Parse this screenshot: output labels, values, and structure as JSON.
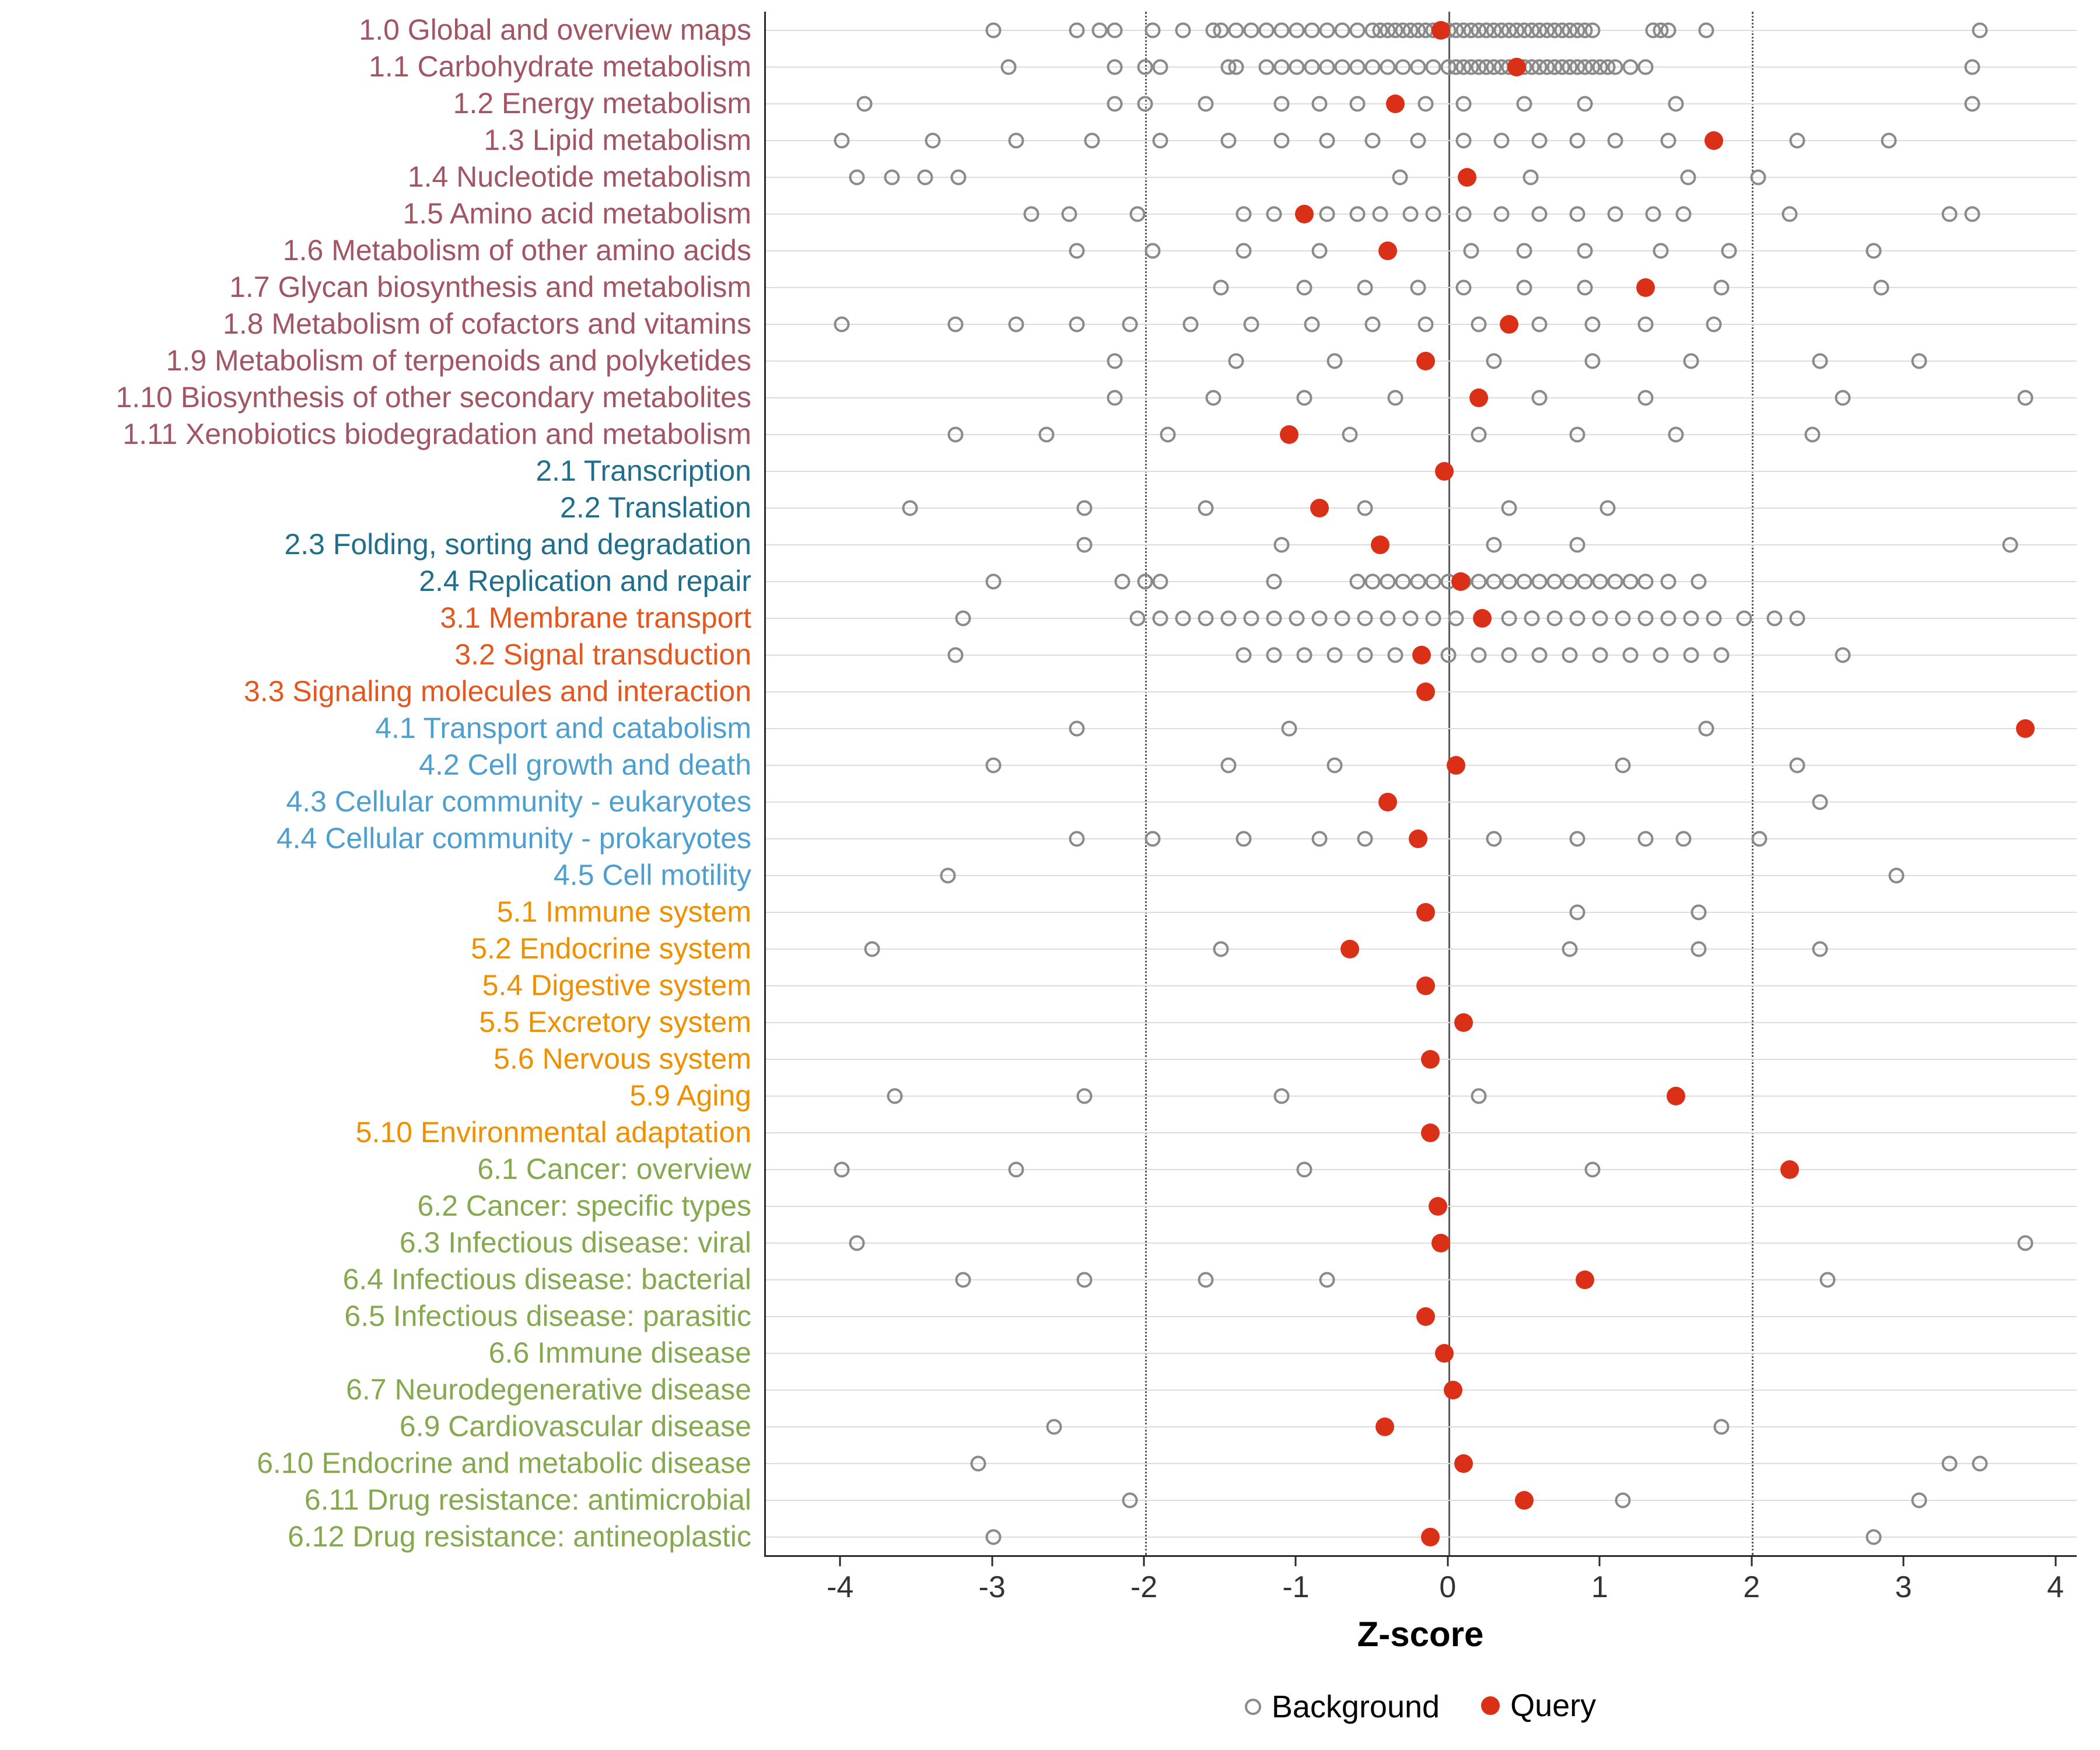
{
  "chart_data": {
    "type": "scatter",
    "title": "",
    "xlabel": "Z-score",
    "xlim": [
      -4.5,
      4.14
    ],
    "x_ticks": [
      -4,
      -3,
      -2,
      -1,
      0,
      1,
      2,
      3,
      4
    ],
    "reference_lines": {
      "solid": [
        0
      ],
      "dotted": [
        -2,
        2
      ]
    },
    "legend_labels": {
      "background": "Background",
      "query": "Query"
    },
    "legend_position": "bottom",
    "grid": "horizontal-only",
    "colors": {
      "query": "#DB3018",
      "background_stroke": "#8A8A8A",
      "gridline": "#DCDCDC",
      "reference_line": "#5A5A5A",
      "axis_line": "#2B2B2B",
      "groups": {
        "1": "#A25563",
        "2": "#1F6E8C",
        "3": "#E4571E",
        "4": "#4D9FD0",
        "5": "#EE9000",
        "6": "#85A94E"
      }
    },
    "rows": [
      {
        "label": "1.0 Global and overview maps",
        "group": "1",
        "query": -0.05,
        "background": [
          -3.0,
          -2.45,
          -2.3,
          -2.2,
          -1.95,
          -1.75,
          -1.55,
          -1.5,
          -1.4,
          -1.3,
          -1.2,
          -1.1,
          -1.0,
          -0.9,
          -0.8,
          -0.7,
          -0.6,
          -0.5,
          -0.45,
          -0.4,
          -0.35,
          -0.3,
          -0.25,
          -0.2,
          -0.15,
          -0.1,
          -0.05,
          0.0,
          0.05,
          0.1,
          0.15,
          0.2,
          0.25,
          0.3,
          0.35,
          0.4,
          0.45,
          0.5,
          0.55,
          0.6,
          0.65,
          0.7,
          0.75,
          0.8,
          0.85,
          0.9,
          0.95,
          1.35,
          1.4,
          1.45,
          1.7,
          3.5
        ]
      },
      {
        "label": "1.1 Carbohydrate metabolism",
        "group": "1",
        "query": 0.45,
        "background": [
          -2.9,
          -2.2,
          -2.0,
          -1.9,
          -1.45,
          -1.4,
          -1.2,
          -1.1,
          -1.0,
          -0.9,
          -0.8,
          -0.7,
          -0.6,
          -0.5,
          -0.4,
          -0.3,
          -0.2,
          -0.1,
          0.0,
          0.05,
          0.1,
          0.15,
          0.2,
          0.25,
          0.3,
          0.35,
          0.4,
          0.5,
          0.55,
          0.6,
          0.65,
          0.7,
          0.75,
          0.8,
          0.85,
          0.9,
          0.95,
          1.0,
          1.05,
          1.1,
          1.2,
          1.3,
          3.45
        ]
      },
      {
        "label": "1.2 Energy metabolism",
        "group": "1",
        "query": -0.35,
        "background": [
          -3.85,
          -2.2,
          -2.0,
          -1.6,
          -1.1,
          -0.85,
          -0.6,
          -0.15,
          0.1,
          0.5,
          0.9,
          1.5,
          3.45
        ]
      },
      {
        "label": "1.3 Lipid metabolism",
        "group": "1",
        "query": 1.75,
        "background": [
          -4.0,
          -3.4,
          -2.85,
          -2.35,
          -1.9,
          -1.45,
          -1.1,
          -0.8,
          -0.5,
          -0.2,
          0.1,
          0.35,
          0.6,
          0.85,
          1.1,
          1.45,
          2.3,
          2.9
        ]
      },
      {
        "label": "1.4 Nucleotide metabolism",
        "group": "1",
        "query": 0.12,
        "background": [
          -3.9,
          -3.67,
          -3.45,
          -3.23,
          -0.32,
          0.54,
          1.58,
          2.04
        ]
      },
      {
        "label": "1.5 Amino acid metabolism",
        "group": "1",
        "query": -0.95,
        "background": [
          -2.75,
          -2.5,
          -2.05,
          -1.35,
          -1.15,
          -0.8,
          -0.6,
          -0.45,
          -0.25,
          -0.1,
          0.1,
          0.35,
          0.6,
          0.85,
          1.1,
          1.35,
          1.55,
          2.25,
          3.3,
          3.45
        ]
      },
      {
        "label": "1.6 Metabolism of other amino acids",
        "group": "1",
        "query": -0.4,
        "background": [
          -2.45,
          -1.95,
          -1.35,
          -0.85,
          0.15,
          0.5,
          0.9,
          1.4,
          1.85,
          2.8
        ]
      },
      {
        "label": "1.7 Glycan biosynthesis and metabolism",
        "group": "1",
        "query": 1.3,
        "background": [
          -1.5,
          -0.95,
          -0.55,
          -0.2,
          0.1,
          0.5,
          0.9,
          1.8,
          2.85
        ]
      },
      {
        "label": "1.8 Metabolism of cofactors and vitamins",
        "group": "1",
        "query": 0.4,
        "background": [
          -4.0,
          -3.25,
          -2.85,
          -2.45,
          -2.1,
          -1.7,
          -1.3,
          -0.9,
          -0.5,
          -0.15,
          0.2,
          0.6,
          0.95,
          1.3,
          1.75
        ]
      },
      {
        "label": "1.9 Metabolism of terpenoids and polyketides",
        "group": "1",
        "query": -0.15,
        "background": [
          -2.2,
          -1.4,
          -0.75,
          0.3,
          0.95,
          1.6,
          2.45,
          3.1
        ]
      },
      {
        "label": "1.10 Biosynthesis of other secondary metabolites",
        "group": "1",
        "query": 0.2,
        "background": [
          -2.2,
          -1.55,
          -0.95,
          -0.35,
          0.6,
          1.3,
          2.6,
          3.8
        ]
      },
      {
        "label": "1.11 Xenobiotics biodegradation and metabolism",
        "group": "1",
        "query": -1.05,
        "background": [
          -3.25,
          -2.65,
          -1.85,
          -0.65,
          0.2,
          0.85,
          1.5,
          2.4
        ]
      },
      {
        "label": "2.1 Transcription",
        "group": "2",
        "query": -0.03,
        "background": []
      },
      {
        "label": "2.2 Translation",
        "group": "2",
        "query": -0.85,
        "background": [
          -3.55,
          -2.4,
          -1.6,
          -0.55,
          0.4,
          1.05
        ]
      },
      {
        "label": "2.3 Folding, sorting and degradation",
        "group": "2",
        "query": -0.45,
        "background": [
          -2.4,
          -1.1,
          0.3,
          0.85,
          3.7
        ]
      },
      {
        "label": "2.4 Replication and repair",
        "group": "2",
        "query": 0.08,
        "background": [
          -3.0,
          -2.15,
          -2.0,
          -1.9,
          -1.15,
          -0.6,
          -0.5,
          -0.4,
          -0.3,
          -0.2,
          -0.1,
          0.0,
          0.1,
          0.2,
          0.3,
          0.4,
          0.5,
          0.6,
          0.7,
          0.8,
          0.9,
          1.0,
          1.1,
          1.2,
          1.3,
          1.45,
          1.65
        ]
      },
      {
        "label": "3.1 Membrane transport",
        "group": "3",
        "query": 0.22,
        "background": [
          -3.2,
          -2.05,
          -1.9,
          -1.75,
          -1.6,
          -1.45,
          -1.3,
          -1.15,
          -1.0,
          -0.85,
          -0.7,
          -0.55,
          -0.4,
          -0.25,
          -0.1,
          0.05,
          0.4,
          0.55,
          0.7,
          0.85,
          1.0,
          1.15,
          1.3,
          1.45,
          1.6,
          1.75,
          1.95,
          2.15,
          2.3
        ]
      },
      {
        "label": "3.2 Signal transduction",
        "group": "3",
        "query": -0.18,
        "background": [
          -3.25,
          -1.35,
          -1.15,
          -0.95,
          -0.75,
          -0.55,
          -0.35,
          0.0,
          0.2,
          0.4,
          0.6,
          0.8,
          1.0,
          1.2,
          1.4,
          1.6,
          1.8,
          2.6
        ]
      },
      {
        "label": "3.3 Signaling molecules and interaction",
        "group": "3",
        "query": -0.15,
        "background": []
      },
      {
        "label": "4.1 Transport and catabolism",
        "group": "4",
        "query": 3.8,
        "background": [
          -2.45,
          -1.05,
          1.7
        ]
      },
      {
        "label": "4.2 Cell growth and death",
        "group": "4",
        "query": 0.05,
        "background": [
          -3.0,
          -1.45,
          -0.75,
          1.15,
          2.3
        ]
      },
      {
        "label": "4.3 Cellular community - eukaryotes",
        "group": "4",
        "query": -0.4,
        "background": [
          2.45
        ]
      },
      {
        "label": "4.4 Cellular community - prokaryotes",
        "group": "4",
        "query": -0.2,
        "background": [
          -2.45,
          -1.95,
          -1.35,
          -0.85,
          -0.55,
          0.3,
          0.85,
          1.3,
          1.55,
          2.05
        ]
      },
      {
        "label": "4.5 Cell motility",
        "group": "4",
        "query": null,
        "background": [
          -3.3,
          2.95
        ]
      },
      {
        "label": "5.1 Immune system",
        "group": "5",
        "query": -0.15,
        "background": [
          0.85,
          1.65
        ]
      },
      {
        "label": "5.2 Endocrine system",
        "group": "5",
        "query": -0.65,
        "background": [
          -3.8,
          -1.5,
          0.8,
          1.65,
          2.45
        ]
      },
      {
        "label": "5.4 Digestive system",
        "group": "5",
        "query": -0.15,
        "background": []
      },
      {
        "label": "5.5 Excretory system",
        "group": "5",
        "query": 0.1,
        "background": []
      },
      {
        "label": "5.6 Nervous system",
        "group": "5",
        "query": -0.12,
        "background": []
      },
      {
        "label": "5.9 Aging",
        "group": "5",
        "query": 1.5,
        "background": [
          -3.65,
          -2.4,
          -1.1,
          0.2
        ]
      },
      {
        "label": "5.10 Environmental adaptation",
        "group": "5",
        "query": -0.12,
        "background": []
      },
      {
        "label": "6.1 Cancer: overview",
        "group": "6",
        "query": 2.25,
        "background": [
          -4.0,
          -2.85,
          -0.95,
          0.95
        ]
      },
      {
        "label": "6.2 Cancer: specific types",
        "group": "6",
        "query": -0.07,
        "background": []
      },
      {
        "label": "6.3 Infectious disease: viral",
        "group": "6",
        "query": -0.05,
        "background": [
          -3.9,
          3.8
        ]
      },
      {
        "label": "6.4 Infectious disease: bacterial",
        "group": "6",
        "query": 0.9,
        "background": [
          -3.2,
          -2.4,
          -1.6,
          -0.8,
          2.5
        ]
      },
      {
        "label": "6.5 Infectious disease: parasitic",
        "group": "6",
        "query": -0.15,
        "background": []
      },
      {
        "label": "6.6 Immune disease",
        "group": "6",
        "query": -0.03,
        "background": []
      },
      {
        "label": "6.7 Neurodegenerative disease",
        "group": "6",
        "query": 0.03,
        "background": []
      },
      {
        "label": "6.9 Cardiovascular disease",
        "group": "6",
        "query": -0.42,
        "background": [
          -2.6,
          1.8
        ]
      },
      {
        "label": "6.10 Endocrine and metabolic disease",
        "group": "6",
        "query": 0.1,
        "background": [
          -3.1,
          3.3,
          3.5
        ]
      },
      {
        "label": "6.11 Drug resistance: antimicrobial",
        "group": "6",
        "query": 0.5,
        "background": [
          -2.1,
          1.15,
          3.1
        ]
      },
      {
        "label": "6.12 Drug resistance: antineoplastic",
        "group": "6",
        "query": -0.12,
        "background": [
          -3.0,
          2.8
        ]
      }
    ]
  }
}
